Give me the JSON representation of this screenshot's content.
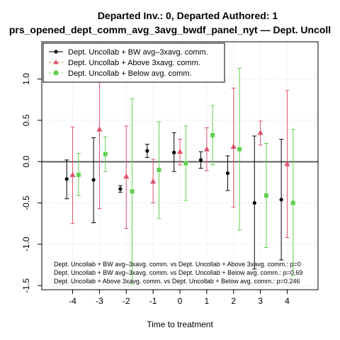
{
  "chart_data": {
    "type": "scatter",
    "title_line1": "Departed Inv.: 0, Departed Authored: 1",
    "title_line2": "prs_opened_dept_comm_avg_3avg_bwdf_panel_nyt — Dept. Uncoll",
    "xlabel": "Time to treatment",
    "ylabel": "",
    "x_ticks": [
      -4,
      -3,
      -2,
      -1,
      0,
      1,
      2,
      3,
      4
    ],
    "y_ticks": [
      -1.5,
      -1.0,
      -0.5,
      0.0,
      0.5,
      1.0
    ],
    "y_tick_labels": [
      "-1.5",
      "-1.0",
      "-0.5",
      "0.0",
      "0.5",
      "1.0"
    ],
    "xlim": [
      -5.15,
      5.15
    ],
    "ylim": [
      -1.55,
      1.45
    ],
    "grid": true,
    "zero_line": true,
    "legend_position": "top-left",
    "series": [
      {
        "name": "Dept. Uncollab + BW avg–3xavg. comm.",
        "color": "#000000",
        "marker": "circle",
        "x": [
          -4,
          -3,
          -2,
          -1,
          0,
          1,
          2,
          3,
          4
        ],
        "y": [
          -0.21,
          -0.22,
          -0.33,
          0.13,
          0.11,
          0.02,
          -0.14,
          -0.5,
          -0.46
        ],
        "lower": [
          -0.45,
          -0.74,
          -0.37,
          0.05,
          -0.12,
          -0.08,
          -0.35,
          -1.3,
          -1.19
        ],
        "upper": [
          0.02,
          0.29,
          -0.29,
          0.21,
          0.35,
          0.12,
          0.07,
          0.31,
          0.27
        ]
      },
      {
        "name": "Dept. Uncollab + Above 3xavg. comm.",
        "color": "#DF536B",
        "marker": "triangle",
        "x": [
          -4,
          -3,
          -2,
          -1,
          0,
          1,
          2,
          3,
          4
        ],
        "y": [
          -0.16,
          0.39,
          -0.18,
          -0.24,
          0.12,
          0.15,
          0.18,
          0.35,
          -0.03
        ],
        "lower": [
          -0.75,
          -0.57,
          -0.81,
          -0.5,
          -0.04,
          -0.11,
          -0.55,
          0.2,
          -0.92
        ],
        "upper": [
          0.42,
          1.35,
          0.43,
          0.03,
          0.27,
          0.41,
          0.89,
          0.49,
          0.86
        ]
      },
      {
        "name": "Dept. Uncollab + Below avg. comm.",
        "color": "#61D04F",
        "marker": "square",
        "x": [
          -4,
          -3,
          -2,
          -1,
          0,
          1,
          2,
          3,
          4
        ],
        "y": [
          -0.16,
          0.09,
          -0.36,
          -0.1,
          -0.02,
          0.32,
          0.15,
          -0.41,
          -0.5
        ],
        "lower": [
          -0.41,
          -0.12,
          -1.48,
          -0.69,
          -0.47,
          -0.04,
          -0.83,
          -1.04,
          -1.38
        ],
        "upper": [
          0.1,
          0.3,
          0.76,
          0.48,
          0.43,
          0.68,
          1.13,
          0.22,
          0.39
        ]
      }
    ],
    "annotations": [
      "Dept. Uncollab + BW avg–3xavg. comm. vs Dept. Uncollab + Above 3xavg. comm.: p=0",
      "Dept. Uncollab + BW avg–3xavg. comm. vs Dept. Uncollab + Below avg. comm.: p=0.69",
      "Dept. Uncollab + Above 3xavg. comm. vs Dept. Uncollab + Below avg. comm.: p=0.246"
    ]
  }
}
